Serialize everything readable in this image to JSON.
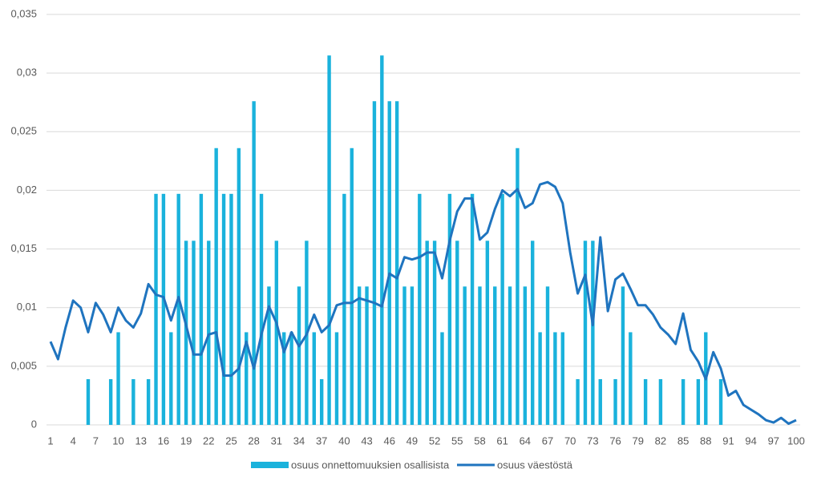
{
  "chart_data": {
    "type": "bar_line",
    "categories": [
      1,
      null,
      null,
      4,
      null,
      null,
      7,
      null,
      null,
      10,
      null,
      null,
      13,
      null,
      null,
      16,
      null,
      null,
      19,
      null,
      null,
      22,
      null,
      null,
      25,
      null,
      null,
      28,
      null,
      null,
      31,
      null,
      null,
      34,
      null,
      null,
      37,
      null,
      null,
      40,
      null,
      null,
      43,
      null,
      null,
      46,
      null,
      null,
      49,
      null,
      null,
      52,
      null,
      null,
      55,
      null,
      null,
      58,
      null,
      null,
      61,
      null,
      null,
      64,
      null,
      null,
      67,
      null,
      null,
      70,
      null,
      null,
      73,
      null,
      null,
      76,
      null,
      null,
      79,
      null,
      null,
      82,
      null,
      null,
      85,
      null,
      null,
      88,
      null,
      null,
      91,
      null,
      null,
      94,
      null,
      null,
      97,
      null,
      null,
      100
    ],
    "series": [
      {
        "name": "osuus onnettomuuksien osallisista",
        "type": "bar",
        "color": "#1ab2dc",
        "values": [
          0,
          0,
          0,
          0,
          0,
          0.0039,
          0,
          0,
          0.0039,
          0.0079,
          0,
          0.0039,
          0,
          0.0039,
          0.0197,
          0.0197,
          0.0079,
          0.0197,
          0.0157,
          0.0157,
          0.0197,
          0.0157,
          0.0236,
          0.0197,
          0.0197,
          0.0236,
          0.0079,
          0.0276,
          0.0197,
          0.0118,
          0.0157,
          0.0079,
          0.0079,
          0.0118,
          0.0157,
          0.0079,
          0.0039,
          0.0315,
          0.0079,
          0.0197,
          0.0236,
          0.0118,
          0.0118,
          0.0276,
          0.0315,
          0.0276,
          0.0276,
          0.0118,
          0.0118,
          0.0197,
          0.0157,
          0.0157,
          0.0079,
          0.0197,
          0.0157,
          0.0118,
          0.0197,
          0.0118,
          0.0157,
          0.0118,
          0.0197,
          0.0118,
          0.0236,
          0.0118,
          0.0157,
          0.0079,
          0.0118,
          0.0079,
          0.0079,
          0,
          0.0039,
          0.0157,
          0.0157,
          0.0039,
          0,
          0.0039,
          0.0118,
          0.0079,
          0,
          0.0039,
          0,
          0.0039,
          0,
          0,
          0.0039,
          0,
          0.0039,
          0.0079,
          0,
          0.0039,
          0,
          0,
          0,
          0,
          0,
          0,
          0,
          0,
          0,
          0
        ]
      },
      {
        "name": "osuus väestöstä",
        "type": "line",
        "color": "#1f74bf",
        "values": [
          0.0071,
          0.0056,
          0.0083,
          0.0106,
          0.01,
          0.0079,
          0.0104,
          0.0094,
          0.0079,
          0.01,
          0.0089,
          0.0083,
          0.0095,
          0.012,
          0.0111,
          0.0109,
          0.0089,
          0.0109,
          0.0085,
          0.006,
          0.006,
          0.0077,
          0.0079,
          0.0042,
          0.0042,
          0.0048,
          0.0071,
          0.0048,
          0.0077,
          0.0101,
          0.0087,
          0.0062,
          0.0079,
          0.0067,
          0.0077,
          0.0094,
          0.0079,
          0.0085,
          0.0102,
          0.0104,
          0.0104,
          0.0108,
          0.0106,
          0.0104,
          0.0101,
          0.0129,
          0.0125,
          0.0143,
          0.0141,
          0.0143,
          0.0147,
          0.0147,
          0.0125,
          0.0157,
          0.0182,
          0.0193,
          0.0193,
          0.0158,
          0.0164,
          0.0184,
          0.02,
          0.0195,
          0.0201,
          0.0185,
          0.0189,
          0.0205,
          0.0207,
          0.0203,
          0.0189,
          0.0147,
          0.0112,
          0.0128,
          0.0085,
          0.016,
          0.0097,
          0.0124,
          0.0129,
          0.0116,
          0.0102,
          0.0102,
          0.0094,
          0.0083,
          0.0077,
          0.0069,
          0.0095,
          0.0064,
          0.0054,
          0.0039,
          0.0062,
          0.0048,
          0.0025,
          0.0029,
          0.0017,
          0.0013,
          0.0009,
          0.0004,
          0.0002,
          0.0006,
          0.0001,
          0.0004
        ]
      }
    ],
    "ylim": [
      0,
      0.035
    ],
    "yticks": [
      0,
      {
        "value": 0.005,
        "label": "0,005"
      },
      {
        "value": 0.01,
        "label": "0,01"
      },
      {
        "value": 0.015,
        "label": "0,015"
      },
      {
        "value": 0.02,
        "label": "0,02"
      },
      {
        "value": 0.025,
        "label": "0,025"
      },
      {
        "value": 0.03,
        "label": "0,03"
      },
      {
        "value": 0.035,
        "label": "0,035"
      }
    ],
    "grid": true,
    "legend": "bottom"
  }
}
